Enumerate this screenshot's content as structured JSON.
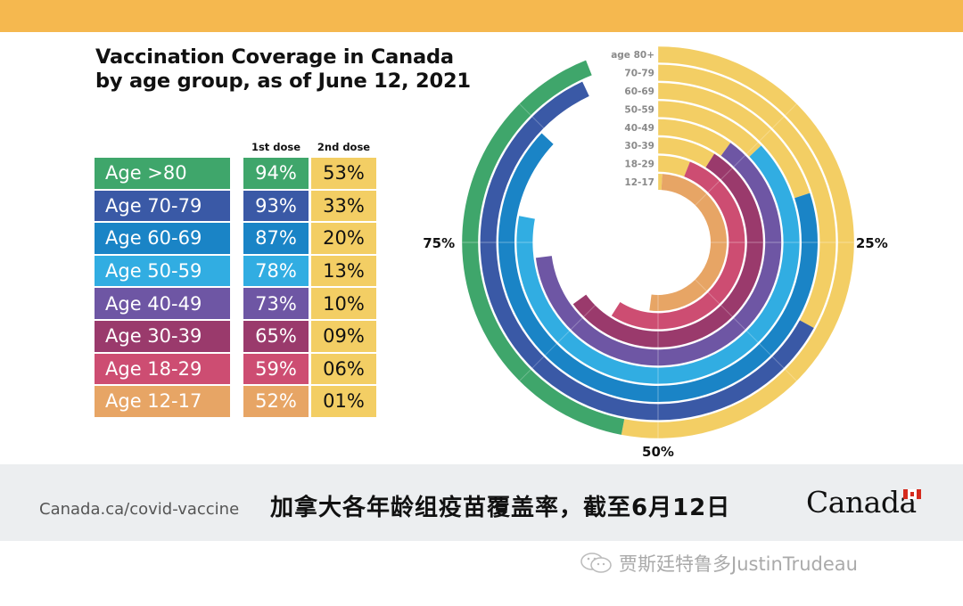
{
  "header": {
    "title_line1": "Vaccination Coverage in Canada",
    "title_line2": "by age group, as of June 12, 2021",
    "bar_color": "#f5b84f"
  },
  "table": {
    "col_first_dose": "1st dose",
    "col_second_dose": "2nd dose",
    "second_dose_color": "#f3ce64",
    "rows": [
      {
        "label": "Age >80",
        "first": "94%",
        "second": "53%",
        "color": "#3fa66b"
      },
      {
        "label": "Age 70-79",
        "first": "93%",
        "second": "33%",
        "color": "#3a59a6"
      },
      {
        "label": "Age 60-69",
        "first": "87%",
        "second": "20%",
        "color": "#1a84c6"
      },
      {
        "label": "Age 50-59",
        "first": "78%",
        "second": "13%",
        "color": "#31ade2"
      },
      {
        "label": "Age 40-49",
        "first": "73%",
        "second": "10%",
        "color": "#6e56a4"
      },
      {
        "label": "Age 30-39",
        "first": "65%",
        "second": "09%",
        "color": "#9a3a6c"
      },
      {
        "label": "Age 18-29",
        "first": "59%",
        "second": "06%",
        "color": "#cd4d72"
      },
      {
        "label": "Age 12-17",
        "first": "52%",
        "second": "01%",
        "color": "#e7a565"
      }
    ]
  },
  "chart_data": {
    "type": "radial-bar",
    "title": "Vaccination Coverage in Canada by age group, as of June 12, 2021",
    "direction": "clockwise from top",
    "axis_labels": [
      "25%",
      "50%",
      "75%"
    ],
    "ring_labels": [
      "age 80+",
      "70-79",
      "60-69",
      "50-59",
      "40-49",
      "30-39",
      "18-29",
      "12-17"
    ],
    "categories": [
      "80+",
      "70-79",
      "60-69",
      "50-59",
      "40-49",
      "30-39",
      "18-29",
      "12-17"
    ],
    "series": [
      {
        "name": "1st dose",
        "values": [
          94,
          93,
          87,
          78,
          73,
          65,
          59,
          52
        ]
      },
      {
        "name": "2nd dose",
        "values": [
          53,
          33,
          20,
          13,
          10,
          9,
          6,
          1
        ]
      }
    ],
    "colors_first_dose": [
      "#3fa66b",
      "#3a59a6",
      "#1a84c6",
      "#31ade2",
      "#6e56a4",
      "#9a3a6c",
      "#cd4d72",
      "#e7a565"
    ],
    "color_second_dose": "#f3ce64",
    "range": [
      0,
      100
    ]
  },
  "footer": {
    "url": "Canada.ca/covid-vaccine",
    "caption_cn": "加拿大各年龄组疫苗覆盖率，截至6月12日",
    "logo": "Canada"
  },
  "watermark": {
    "text": "贾斯廷特鲁多JustinTrudeau",
    "icon": "wechat-icon"
  }
}
